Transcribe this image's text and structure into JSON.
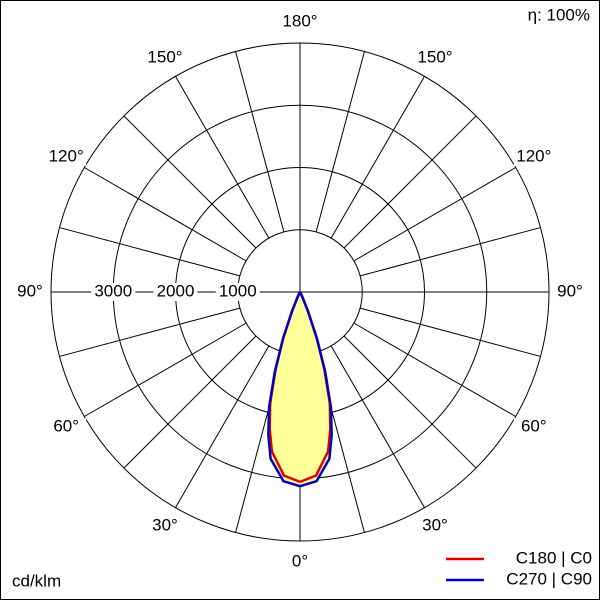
{
  "chart_data": {
    "type": "polar",
    "efficiency_label": "η: 100%",
    "unit_label": "cd/klm",
    "rlim": [
      0,
      4000
    ],
    "rticks": [
      1000,
      2000,
      3000
    ],
    "theta_grid": [
      0,
      15,
      30,
      45,
      60,
      75,
      90,
      105,
      120,
      135,
      150,
      165,
      180
    ],
    "thetaticks": [
      {
        "value": 0,
        "label": "0°"
      },
      {
        "value": 30,
        "label": "30°"
      },
      {
        "value": 60,
        "label": "60°"
      },
      {
        "value": 90,
        "label": "90°"
      },
      {
        "value": 120,
        "label": "120°"
      },
      {
        "value": 150,
        "label": "150°"
      },
      {
        "value": 180,
        "label": "180°"
      }
    ],
    "fill_color": "#ffff99",
    "theta": [
      0,
      5,
      10,
      12.5,
      15,
      17.5,
      20,
      22.5,
      25,
      27.5,
      30
    ],
    "series": [
      {
        "name": "C180 | C0",
        "color": "#e00000",
        "values": [
          3050,
          2960,
          2600,
          2250,
          1850,
          1300,
          780,
          330,
          100,
          20,
          0
        ]
      },
      {
        "name": "C270 | C90",
        "color": "#0000c0",
        "values": [
          3120,
          3050,
          2720,
          2350,
          1920,
          1350,
          800,
          340,
          100,
          20,
          0
        ]
      }
    ]
  }
}
